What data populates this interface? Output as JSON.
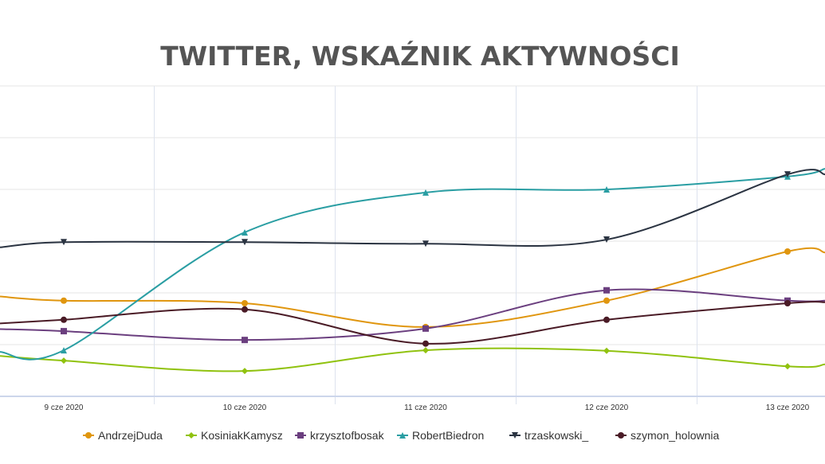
{
  "chart_data": {
    "type": "line",
    "title": "TWITTER, WSKAŹNIK AKTYWNOŚCI",
    "xlabel": "",
    "ylabel": "",
    "categories": [
      "9 cze 2020",
      "10 cze 2020",
      "11 cze 2020",
      "12 cze 2020",
      "13 cze 2020"
    ],
    "ylim": [
      0,
      6
    ],
    "grid": true,
    "legend_position": "bottom",
    "series": [
      {
        "name": "AndrzejDuda",
        "color": "#e0960f",
        "marker": "circle",
        "values": [
          1.85,
          1.8,
          1.34,
          1.85,
          2.8
        ],
        "edge": [
          1.93,
          2.78
        ]
      },
      {
        "name": "KosiniakKamysz",
        "color": "#90c20f",
        "marker": "diamond",
        "values": [
          0.69,
          0.49,
          0.89,
          0.88,
          0.58
        ],
        "edge": [
          0.78,
          0.62
        ]
      },
      {
        "name": "krzysztofbosak",
        "color": "#6b3f7f",
        "marker": "square",
        "values": [
          1.26,
          1.09,
          1.31,
          2.05,
          1.85
        ],
        "edge": [
          1.3,
          1.85
        ]
      },
      {
        "name": "RobertBiedron",
        "color": "#2a9ea3",
        "marker": "triangle",
        "values": [
          0.89,
          3.17,
          3.94,
          4.0,
          4.25
        ],
        "edge": [
          0.86,
          4.4
        ]
      },
      {
        "name": "trzaskowski_",
        "color": "#2b3442",
        "marker": "triangle-down",
        "values": [
          2.98,
          2.98,
          2.95,
          3.03,
          4.29
        ],
        "edge": [
          2.88,
          4.29
        ]
      },
      {
        "name": "szymon_holownia",
        "color": "#4a1b26",
        "marker": "circle",
        "values": [
          1.48,
          1.68,
          1.02,
          1.48,
          1.8
        ],
        "edge": [
          1.41,
          1.82
        ]
      }
    ]
  }
}
